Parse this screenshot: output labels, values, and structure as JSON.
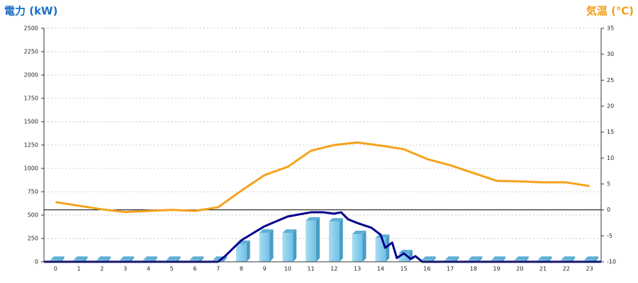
{
  "chart_data": {
    "type": "bar",
    "title_left": "電力 (kW)",
    "title_left_color": "#1a6fc4",
    "title_right": "気温 (℃)",
    "title_right_color": "#f39c12",
    "categories": [
      "0",
      "1",
      "2",
      "3",
      "4",
      "5",
      "6",
      "7",
      "8",
      "9",
      "10",
      "11",
      "12",
      "13",
      "14",
      "15",
      "16",
      "17",
      "18",
      "19",
      "20",
      "21",
      "22",
      "23"
    ],
    "xlim": [
      -0.5,
      23.5
    ],
    "ylim": [
      0,
      2500
    ],
    "yticks": [
      0,
      250,
      500,
      750,
      1000,
      1250,
      1500,
      1750,
      2000,
      2250,
      2500
    ],
    "y2lim": [
      -10,
      35
    ],
    "y2ticks": [
      -10,
      -5,
      0,
      5,
      10,
      15,
      20,
      25,
      30,
      35
    ],
    "grid": true,
    "y2_zero_line": true,
    "series": [
      {
        "type": "bar",
        "color": "#87ceeb",
        "values": [
          20,
          20,
          20,
          20,
          20,
          20,
          20,
          20,
          190,
          310,
          310,
          440,
          430,
          295,
          255,
          90,
          20,
          20,
          20,
          20,
          20,
          20,
          20,
          20
        ]
      },
      {
        "type": "line",
        "color": "#00008b",
        "x": [
          -0.5,
          7,
          7.3,
          8,
          9,
          10,
          11,
          11.5,
          12,
          12.3,
          12.6,
          13,
          13.6,
          14,
          14.2,
          14.5,
          14.7,
          15,
          15.3,
          15.5,
          15.8,
          16,
          23.5
        ],
        "values": [
          0,
          0,
          60,
          230,
          380,
          485,
          530,
          530,
          515,
          530,
          455,
          415,
          365,
          290,
          150,
          205,
          40,
          90,
          30,
          60,
          0,
          0,
          0
        ]
      },
      {
        "type": "line",
        "axis": "y2",
        "color": "#f5a21b",
        "values": [
          1.5,
          0.8,
          0.1,
          -0.4,
          -0.2,
          0,
          -0.2,
          0.5,
          3.7,
          6.7,
          8.3,
          11.4,
          12.5,
          13,
          12.4,
          11.7,
          9.8,
          8.6,
          7.1,
          5.6,
          5.5,
          5.3,
          5.3,
          4.6
        ]
      }
    ]
  }
}
